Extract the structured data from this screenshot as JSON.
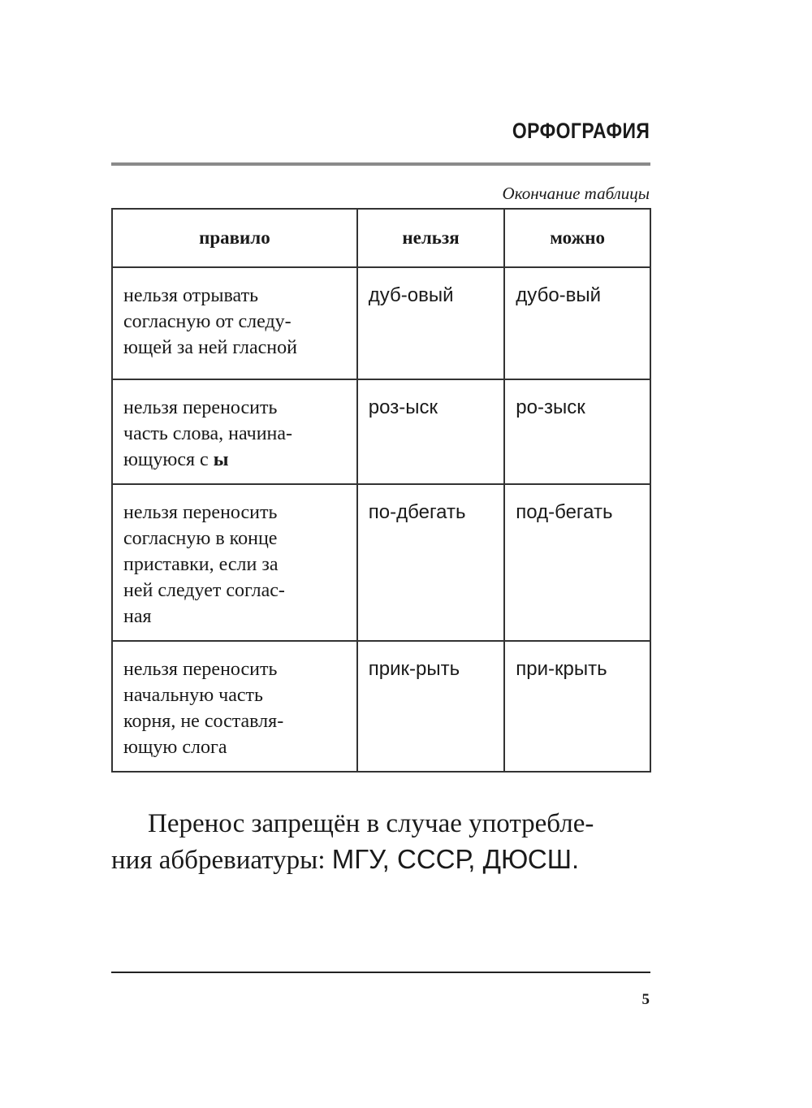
{
  "header": {
    "title": "ОРФОГРАФИЯ"
  },
  "caption": "Окончание таблицы",
  "table": {
    "headers": [
      "правило",
      "нельзя",
      "можно"
    ],
    "rows": [
      {
        "rule_lines": [
          "нельзя отрывать",
          "согласную от следу-",
          "ющей за ней гласной"
        ],
        "rule_bold": "",
        "wrong": "дуб-овый",
        "right": "дубо-вый"
      },
      {
        "rule_lines": [
          "нельзя переносить",
          "часть слова, начина-",
          "ющуюся с "
        ],
        "rule_bold": "ы",
        "wrong": "роз-ыск",
        "right": "ро-зыск"
      },
      {
        "rule_lines": [
          "нельзя переносить",
          "согласную в конце",
          "приставки, если за",
          "ней следует соглас-",
          "ная"
        ],
        "rule_bold": "",
        "wrong": "по-дбегать",
        "right": "под-бегать"
      },
      {
        "rule_lines": [
          "нельзя переносить",
          "начальную часть",
          "корня, не составля-",
          "ющую слога"
        ],
        "rule_bold": "",
        "wrong": "прик-рыть",
        "right": "при-крыть"
      }
    ]
  },
  "paragraph": {
    "line1": "Перенос запрещён в случае употребле-",
    "line2_text": "ния аббревиатуры: ",
    "line2_abbr": "МГУ, СССР, ДЮСШ."
  },
  "footer": {
    "page_number": "5"
  }
}
